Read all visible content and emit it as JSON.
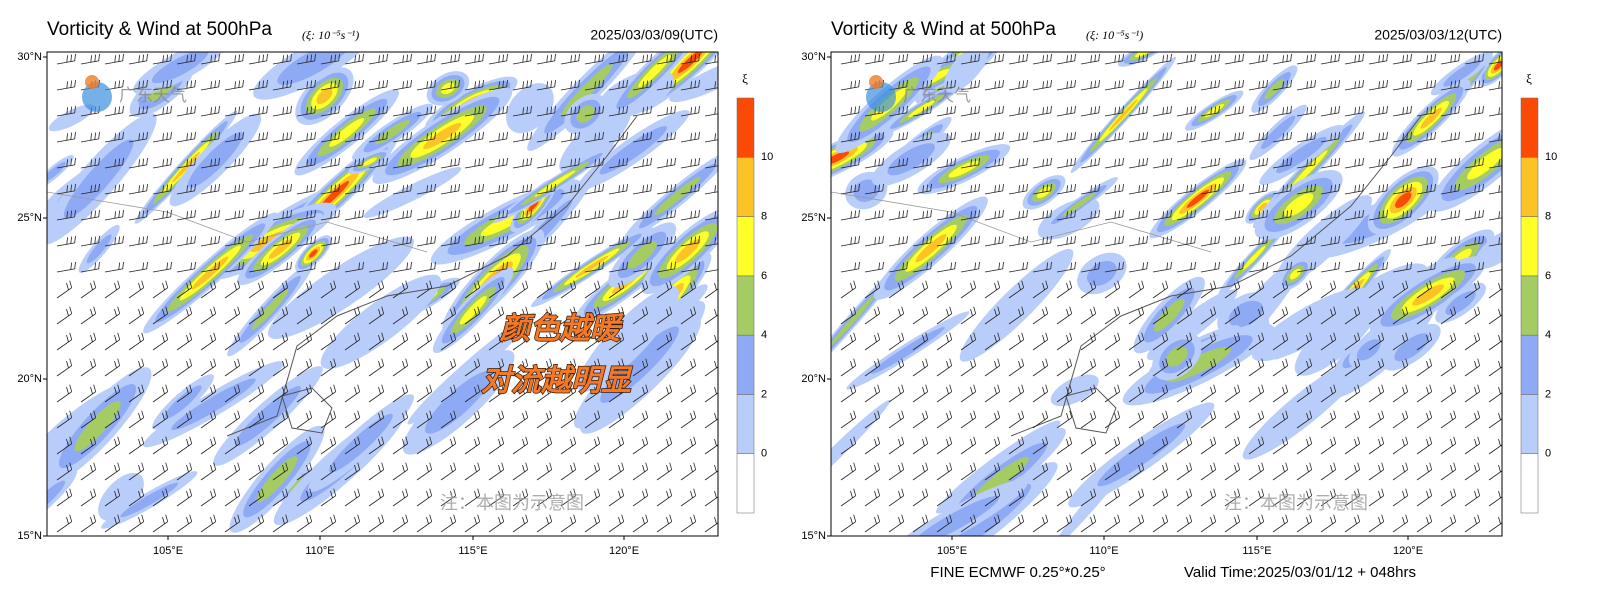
{
  "panels": [
    {
      "title": "Vorticity & Wind at 500hPa",
      "unit": "(ξ: 10⁻⁵s⁻¹)",
      "time": "2025/03/03/09(UTC)",
      "logo": "广东天气",
      "watermark": "注：本图为示意图"
    },
    {
      "title": "Vorticity & Wind at 500hPa",
      "unit": "(ξ: 10⁻⁵s⁻¹)",
      "time": "2025/03/03/12(UTC)",
      "logo": "广东天气",
      "watermark": "注：本图为示意图"
    }
  ],
  "lat_labels": [
    "30°N",
    "25°N",
    "20°N",
    "15°N"
  ],
  "lon_labels": [
    "105°E",
    "110°E",
    "115°E",
    "120°E"
  ],
  "colorbar": {
    "symbol": "ξ",
    "levels": [
      0,
      2,
      4,
      6,
      8,
      10
    ]
  },
  "annotation": [
    "颜色越暖",
    "对流越明显"
  ],
  "footer": {
    "source": "FINE ECMWF 0.25°*0.25°",
    "valid": "Valid Time:2025/03/01/12 + 048hrs"
  }
}
